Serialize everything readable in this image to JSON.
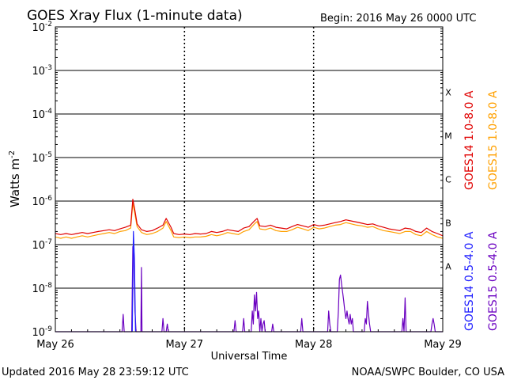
{
  "header": {
    "title": "GOES Xray Flux (1-minute data)",
    "begin": "Begin:  2016 May 26 0000 UTC"
  },
  "footer": {
    "updated": "Updated 2016 May 28 23:59:12 UTC",
    "credit": "NOAA/SWPC Boulder, CO USA"
  },
  "colors": {
    "goes14_long": "#e00000",
    "goes15_long": "#ffa000",
    "goes14_short": "#2020ff",
    "goes15_short": "#6a00c0",
    "plot_bg": "#ffffff",
    "axis": "#000000"
  },
  "chart_data": {
    "type": "line",
    "title": "GOES Xray Flux (1-minute data)",
    "xlabel": "Universal Time",
    "ylabel": "Watts m-2",
    "ylabel_main": "Watts m",
    "ylabel_sup": "-2",
    "yscale": "log",
    "ylim": [
      1e-09,
      0.01
    ],
    "xlim": [
      0,
      72
    ],
    "x_unit": "hours since 2016 May 26 0000 UTC",
    "x_ticks": [
      {
        "label": "May 26",
        "x": 0
      },
      {
        "label": "May 27",
        "x": 24
      },
      {
        "label": "May 28",
        "x": 48
      },
      {
        "label": "May 29",
        "x": 72
      }
    ],
    "y_ticks": [
      {
        "base": "10",
        "exp": "-2",
        "value": 0.01
      },
      {
        "base": "10",
        "exp": "-3",
        "value": 0.001
      },
      {
        "base": "10",
        "exp": "-4",
        "value": 0.0001
      },
      {
        "base": "10",
        "exp": "-5",
        "value": 1e-05
      },
      {
        "base": "10",
        "exp": "-6",
        "value": 1e-06
      },
      {
        "base": "10",
        "exp": "-7",
        "value": 1e-07
      },
      {
        "base": "10",
        "exp": "-8",
        "value": 1e-08
      },
      {
        "base": "10",
        "exp": "-9",
        "value": 1e-09
      }
    ],
    "flare_classes": [
      {
        "label": "X",
        "lower": 0.0001,
        "upper": 0.001
      },
      {
        "label": "M",
        "lower": 1e-05,
        "upper": 0.0001
      },
      {
        "label": "C",
        "lower": 1e-06,
        "upper": 1e-05
      },
      {
        "label": "B",
        "lower": 1e-07,
        "upper": 1e-06
      },
      {
        "label": "A",
        "lower": 1e-08,
        "upper": 1e-07
      }
    ],
    "legend": {
      "placement": "right",
      "groups": [
        [
          "GOES14 1.0-8.0 A",
          "GOES15 1.0-8.0 A"
        ],
        [
          "GOES14 0.5-4.0 A",
          "GOES15 0.5-4.0 A"
        ]
      ]
    },
    "series": [
      {
        "name": "GOES14 1.0-8.0 A",
        "color": "#e00000",
        "x": [
          0,
          1,
          2,
          3,
          4,
          5,
          6,
          7,
          8,
          9,
          10,
          11,
          12,
          13,
          14,
          14.4,
          14.8,
          15.2,
          16,
          17,
          18,
          19,
          20,
          20.6,
          21.5,
          22,
          23,
          24,
          25,
          26,
          27,
          28,
          29,
          30,
          31,
          32,
          33,
          34,
          35,
          36,
          37,
          37.5,
          38,
          39,
          40,
          41,
          42,
          43,
          44,
          45,
          46,
          47,
          48,
          49,
          50,
          51,
          52,
          53,
          54,
          55,
          56,
          57,
          58,
          59,
          60,
          61,
          62,
          63,
          64,
          65,
          66,
          67,
          68,
          69,
          70,
          71,
          72
        ],
        "y": [
          1.8e-07,
          1.7e-07,
          1.8e-07,
          1.7e-07,
          1.8e-07,
          1.9e-07,
          1.8e-07,
          1.9e-07,
          2e-07,
          2.1e-07,
          2.2e-07,
          2.1e-07,
          2.3e-07,
          2.5e-07,
          2.8e-07,
          1.1e-06,
          6e-07,
          3e-07,
          2.2e-07,
          2e-07,
          2.1e-07,
          2.4e-07,
          2.8e-07,
          4e-07,
          2.5e-07,
          1.8e-07,
          1.7e-07,
          1.75e-07,
          1.7e-07,
          1.8e-07,
          1.75e-07,
          1.8e-07,
          2e-07,
          1.9e-07,
          2e-07,
          2.2e-07,
          2.1e-07,
          2e-07,
          2.4e-07,
          2.6e-07,
          3.5e-07,
          4e-07,
          2.7e-07,
          2.6e-07,
          2.8e-07,
          2.5e-07,
          2.4e-07,
          2.3e-07,
          2.6e-07,
          2.9e-07,
          2.7e-07,
          2.5e-07,
          2.9e-07,
          2.7e-07,
          2.8e-07,
          3e-07,
          3.2e-07,
          3.4e-07,
          3.7e-07,
          3.5e-07,
          3.3e-07,
          3.1e-07,
          2.9e-07,
          3e-07,
          2.7e-07,
          2.5e-07,
          2.3e-07,
          2.2e-07,
          2.1e-07,
          2.4e-07,
          2.3e-07,
          2e-07,
          1.9e-07,
          2.4e-07,
          2e-07,
          1.8e-07,
          1.6e-07
        ]
      },
      {
        "name": "GOES15 1.0-8.0 A",
        "color": "#ffa000",
        "x": [
          0,
          1,
          2,
          3,
          4,
          5,
          6,
          7,
          8,
          9,
          10,
          11,
          12,
          13,
          14,
          14.4,
          14.8,
          15.2,
          16,
          17,
          18,
          19,
          20,
          20.6,
          21.5,
          22,
          23,
          24,
          25,
          26,
          27,
          28,
          29,
          30,
          31,
          32,
          33,
          34,
          35,
          36,
          37,
          37.5,
          38,
          39,
          40,
          41,
          42,
          43,
          44,
          45,
          46,
          47,
          48,
          49,
          50,
          51,
          52,
          53,
          54,
          55,
          56,
          57,
          58,
          59,
          60,
          61,
          62,
          63,
          64,
          65,
          66,
          67,
          68,
          69,
          70,
          71,
          72
        ],
        "y": [
          1.5e-07,
          1.4e-07,
          1.5e-07,
          1.4e-07,
          1.5e-07,
          1.6e-07,
          1.5e-07,
          1.6e-07,
          1.7e-07,
          1.8e-07,
          1.9e-07,
          1.8e-07,
          2e-07,
          2.1e-07,
          2.4e-07,
          9e-07,
          5e-07,
          2.6e-07,
          1.9e-07,
          1.7e-07,
          1.8e-07,
          2e-07,
          2.4e-07,
          3.4e-07,
          2.1e-07,
          1.5e-07,
          1.45e-07,
          1.5e-07,
          1.45e-07,
          1.5e-07,
          1.5e-07,
          1.55e-07,
          1.7e-07,
          1.6e-07,
          1.7e-07,
          1.9e-07,
          1.8e-07,
          1.7e-07,
          2e-07,
          2.2e-07,
          3e-07,
          3.4e-07,
          2.3e-07,
          2.2e-07,
          2.4e-07,
          2.1e-07,
          2e-07,
          2e-07,
          2.2e-07,
          2.5e-07,
          2.3e-07,
          2.1e-07,
          2.5e-07,
          2.3e-07,
          2.4e-07,
          2.6e-07,
          2.8e-07,
          2.9e-07,
          3.2e-07,
          3e-07,
          2.8e-07,
          2.7e-07,
          2.5e-07,
          2.6e-07,
          2.3e-07,
          2.1e-07,
          2e-07,
          1.9e-07,
          1.8e-07,
          2e-07,
          2e-07,
          1.7e-07,
          1.6e-07,
          2e-07,
          1.7e-07,
          1.5e-07,
          1.4e-07
        ]
      },
      {
        "name": "GOES14 0.5-4.0 A",
        "color": "#2020ff",
        "x": [
          14.3,
          14.5,
          14.7,
          14.9
        ],
        "y": [
          1e-09,
          2e-07,
          5e-08,
          1e-09
        ]
      },
      {
        "name": "GOES15 0.5-4.0 A",
        "color": "#6a00c0",
        "x": [
          0,
          12.4,
          12.6,
          12.8,
          14.2,
          14.4,
          14.6,
          14.8,
          15.0,
          15.9,
          16.0,
          16.1,
          19.8,
          20.0,
          20.2,
          20.6,
          20.8,
          21.0,
          33.2,
          33.4,
          33.6,
          34.8,
          35.0,
          35.2,
          36.4,
          36.6,
          36.8,
          37.0,
          37.2,
          37.4,
          37.6,
          37.8,
          38.0,
          38.2,
          38.4,
          38.6,
          38.8,
          39.0,
          40.2,
          40.4,
          40.6,
          45.6,
          45.8,
          46.0,
          50.6,
          50.8,
          51.0,
          51.2,
          52.4,
          52.6,
          52.8,
          53.0,
          53.2,
          53.4,
          53.6,
          53.8,
          54.0,
          54.2,
          54.4,
          54.6,
          54.8,
          55.0,
          55.2,
          55.4,
          57.4,
          57.6,
          57.8,
          58.0,
          58.2,
          58.4,
          58.6,
          64.4,
          64.6,
          64.8,
          65.0,
          65.2,
          69.8,
          70.0,
          70.2,
          70.4,
          70.6,
          72
        ],
        "y": [
          1e-09,
          1e-09,
          2.5e-09,
          1e-09,
          1e-09,
          9e-08,
          5e-08,
          3e-09,
          1e-09,
          1e-09,
          3e-08,
          1e-09,
          1e-09,
          2e-09,
          1e-09,
          1e-09,
          1.5e-09,
          1e-09,
          1e-09,
          1.8e-09,
          1e-09,
          1e-09,
          2e-09,
          1e-09,
          1e-09,
          3e-09,
          1.5e-09,
          7e-09,
          3e-09,
          8e-09,
          2e-09,
          3e-09,
          1e-09,
          2e-09,
          1e-09,
          1.5e-09,
          1.8e-09,
          1e-09,
          1e-09,
          1.5e-09,
          1e-09,
          1e-09,
          2e-09,
          1e-09,
          1e-09,
          3e-09,
          1.5e-09,
          1e-09,
          1e-09,
          3e-09,
          1.6e-08,
          2e-08,
          1.2e-08,
          8e-09,
          5e-09,
          3e-09,
          2e-09,
          3e-09,
          2e-09,
          1.5e-09,
          2.5e-09,
          1.5e-09,
          2e-09,
          1e-09,
          1e-09,
          2e-09,
          1.5e-09,
          5e-09,
          2.5e-09,
          1.5e-09,
          1e-09,
          1e-09,
          2e-09,
          1e-09,
          6e-09,
          1e-09,
          1e-09,
          1.5e-09,
          2e-09,
          1.5e-09,
          1e-09,
          1e-09
        ]
      }
    ]
  }
}
